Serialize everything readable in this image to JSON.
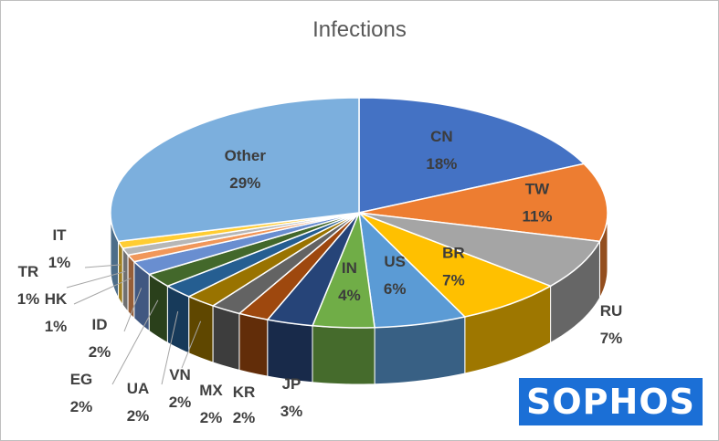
{
  "chart_data": {
    "type": "pie",
    "title": "Infections",
    "three_d": true,
    "legend": "none",
    "slices": [
      {
        "label": "CN",
        "value": 18,
        "value_label": "18%",
        "color": "#4472c4"
      },
      {
        "label": "TW",
        "value": 11,
        "value_label": "11%",
        "color": "#ed7d31"
      },
      {
        "label": "RU",
        "value": 7,
        "value_label": "7%",
        "color": "#a5a5a5"
      },
      {
        "label": "BR",
        "value": 7,
        "value_label": "7%",
        "color": "#ffc000"
      },
      {
        "label": "US",
        "value": 6,
        "value_label": "6%",
        "color": "#5b9bd5"
      },
      {
        "label": "IN",
        "value": 4,
        "value_label": "4%",
        "color": "#70ad47"
      },
      {
        "label": "JP",
        "value": 3,
        "value_label": "3%",
        "color": "#264478"
      },
      {
        "label": "KR",
        "value": 2,
        "value_label": "2%",
        "color": "#9e480e"
      },
      {
        "label": "MX",
        "value": 2,
        "value_label": "2%",
        "color": "#636363"
      },
      {
        "label": "VN",
        "value": 2,
        "value_label": "2%",
        "color": "#997300"
      },
      {
        "label": "UA",
        "value": 2,
        "value_label": "2%",
        "color": "#255e91"
      },
      {
        "label": "EG",
        "value": 2,
        "value_label": "2%",
        "color": "#43682b"
      },
      {
        "label": "ID",
        "value": 2,
        "value_label": "2%",
        "color": "#698ed0"
      },
      {
        "label": "HK",
        "value": 1,
        "value_label": "1%",
        "color": "#f1975a"
      },
      {
        "label": "TR",
        "value": 1,
        "value_label": "1%",
        "color": "#b7b7b7"
      },
      {
        "label": "IT",
        "value": 1,
        "value_label": "1%",
        "color": "#ffcd33"
      },
      {
        "label": "Other",
        "value": 29,
        "value_label": "29%",
        "color": "#7cafdd"
      }
    ]
  },
  "logo": {
    "text": "SOPHOS",
    "color": "#1b6fd6"
  }
}
